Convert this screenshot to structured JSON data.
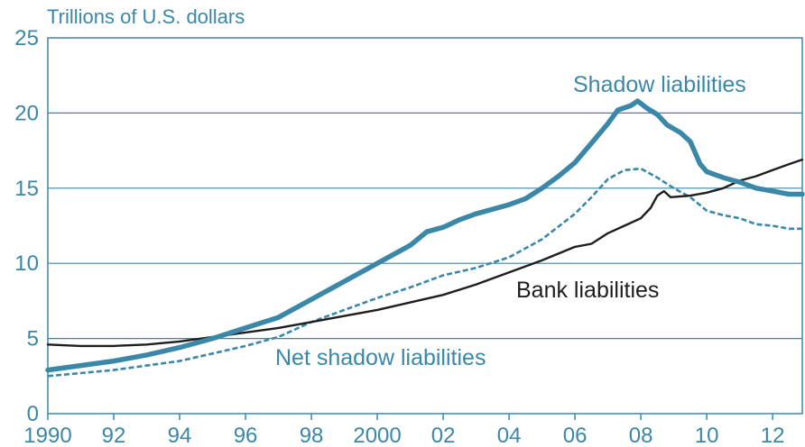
{
  "chart_data": {
    "type": "line",
    "title": "",
    "ylabel": "Trillions of U.S. dollars",
    "xlabel": "",
    "xlim": [
      1990,
      2012.9
    ],
    "ylim": [
      0,
      25
    ],
    "grid": true,
    "y_ticks": [
      0,
      5,
      10,
      15,
      20,
      25
    ],
    "x_ticks": [
      {
        "value": 1990,
        "label": "1990"
      },
      {
        "value": 1992,
        "label": "92"
      },
      {
        "value": 1994,
        "label": "94"
      },
      {
        "value": 1996,
        "label": "96"
      },
      {
        "value": 1998,
        "label": "98"
      },
      {
        "value": 2000,
        "label": "2000"
      },
      {
        "value": 2002,
        "label": "02"
      },
      {
        "value": 2004,
        "label": "04"
      },
      {
        "value": 2006,
        "label": "06"
      },
      {
        "value": 2008,
        "label": "08"
      },
      {
        "value": 2010,
        "label": "10"
      },
      {
        "value": 2012,
        "label": "12"
      }
    ],
    "series": [
      {
        "name": "Shadow liabilities",
        "color": "#3a87a8",
        "style": "solid-thick",
        "points": [
          [
            1990.0,
            2.9
          ],
          [
            1991.0,
            3.2
          ],
          [
            1992.0,
            3.5
          ],
          [
            1993.0,
            3.9
          ],
          [
            1994.0,
            4.4
          ],
          [
            1995.0,
            5.0
          ],
          [
            1996.0,
            5.7
          ],
          [
            1997.0,
            6.4
          ],
          [
            1998.0,
            7.6
          ],
          [
            1999.0,
            8.8
          ],
          [
            2000.0,
            10.0
          ],
          [
            2001.0,
            11.2
          ],
          [
            2001.5,
            12.1
          ],
          [
            2002.0,
            12.4
          ],
          [
            2002.5,
            12.9
          ],
          [
            2003.0,
            13.3
          ],
          [
            2003.5,
            13.6
          ],
          [
            2004.0,
            13.9
          ],
          [
            2004.5,
            14.3
          ],
          [
            2005.0,
            15.0
          ],
          [
            2005.5,
            15.8
          ],
          [
            2006.0,
            16.7
          ],
          [
            2006.5,
            18.0
          ],
          [
            2007.0,
            19.3
          ],
          [
            2007.3,
            20.2
          ],
          [
            2007.7,
            20.5
          ],
          [
            2007.9,
            20.8
          ],
          [
            2008.2,
            20.3
          ],
          [
            2008.5,
            19.9
          ],
          [
            2008.8,
            19.2
          ],
          [
            2009.2,
            18.7
          ],
          [
            2009.5,
            18.1
          ],
          [
            2009.8,
            16.6
          ],
          [
            2010.0,
            16.1
          ],
          [
            2010.5,
            15.7
          ],
          [
            2011.0,
            15.4
          ],
          [
            2011.5,
            15.0
          ],
          [
            2012.0,
            14.8
          ],
          [
            2012.5,
            14.6
          ],
          [
            2012.9,
            14.6
          ]
        ]
      },
      {
        "name": "Bank liabilities",
        "color": "#1e1e1e",
        "style": "solid",
        "points": [
          [
            1990.0,
            4.6
          ],
          [
            1991.0,
            4.5
          ],
          [
            1992.0,
            4.5
          ],
          [
            1993.0,
            4.6
          ],
          [
            1994.0,
            4.8
          ],
          [
            1995.0,
            5.1
          ],
          [
            1996.0,
            5.4
          ],
          [
            1997.0,
            5.7
          ],
          [
            1998.0,
            6.1
          ],
          [
            1999.0,
            6.5
          ],
          [
            2000.0,
            6.9
          ],
          [
            2001.0,
            7.4
          ],
          [
            2002.0,
            7.9
          ],
          [
            2003.0,
            8.6
          ],
          [
            2004.0,
            9.4
          ],
          [
            2005.0,
            10.2
          ],
          [
            2006.0,
            11.1
          ],
          [
            2006.5,
            11.3
          ],
          [
            2007.0,
            12.0
          ],
          [
            2007.5,
            12.5
          ],
          [
            2008.0,
            13.0
          ],
          [
            2008.3,
            13.7
          ],
          [
            2008.5,
            14.5
          ],
          [
            2008.7,
            14.8
          ],
          [
            2008.9,
            14.4
          ],
          [
            2009.5,
            14.5
          ],
          [
            2010.0,
            14.7
          ],
          [
            2010.5,
            15.0
          ],
          [
            2011.0,
            15.5
          ],
          [
            2011.5,
            15.8
          ],
          [
            2012.0,
            16.2
          ],
          [
            2012.5,
            16.6
          ],
          [
            2012.9,
            16.9
          ]
        ]
      },
      {
        "name": "Net shadow liabilities",
        "color": "#3a87a8",
        "style": "dashed",
        "points": [
          [
            1990.0,
            2.5
          ],
          [
            1991.0,
            2.7
          ],
          [
            1992.0,
            2.9
          ],
          [
            1993.0,
            3.2
          ],
          [
            1994.0,
            3.5
          ],
          [
            1995.0,
            4.0
          ],
          [
            1996.0,
            4.5
          ],
          [
            1997.0,
            5.1
          ],
          [
            1998.0,
            6.1
          ],
          [
            1999.0,
            6.9
          ],
          [
            2000.0,
            7.7
          ],
          [
            2001.0,
            8.4
          ],
          [
            2002.0,
            9.2
          ],
          [
            2003.0,
            9.7
          ],
          [
            2004.0,
            10.4
          ],
          [
            2005.0,
            11.6
          ],
          [
            2006.0,
            13.3
          ],
          [
            2006.5,
            14.4
          ],
          [
            2007.0,
            15.6
          ],
          [
            2007.5,
            16.2
          ],
          [
            2008.0,
            16.3
          ],
          [
            2008.5,
            15.7
          ],
          [
            2009.0,
            15.0
          ],
          [
            2009.5,
            14.4
          ],
          [
            2010.0,
            13.5
          ],
          [
            2010.5,
            13.2
          ],
          [
            2011.0,
            13.0
          ],
          [
            2011.5,
            12.6
          ],
          [
            2012.0,
            12.5
          ],
          [
            2012.5,
            12.3
          ],
          [
            2012.9,
            12.3
          ]
        ]
      }
    ]
  }
}
